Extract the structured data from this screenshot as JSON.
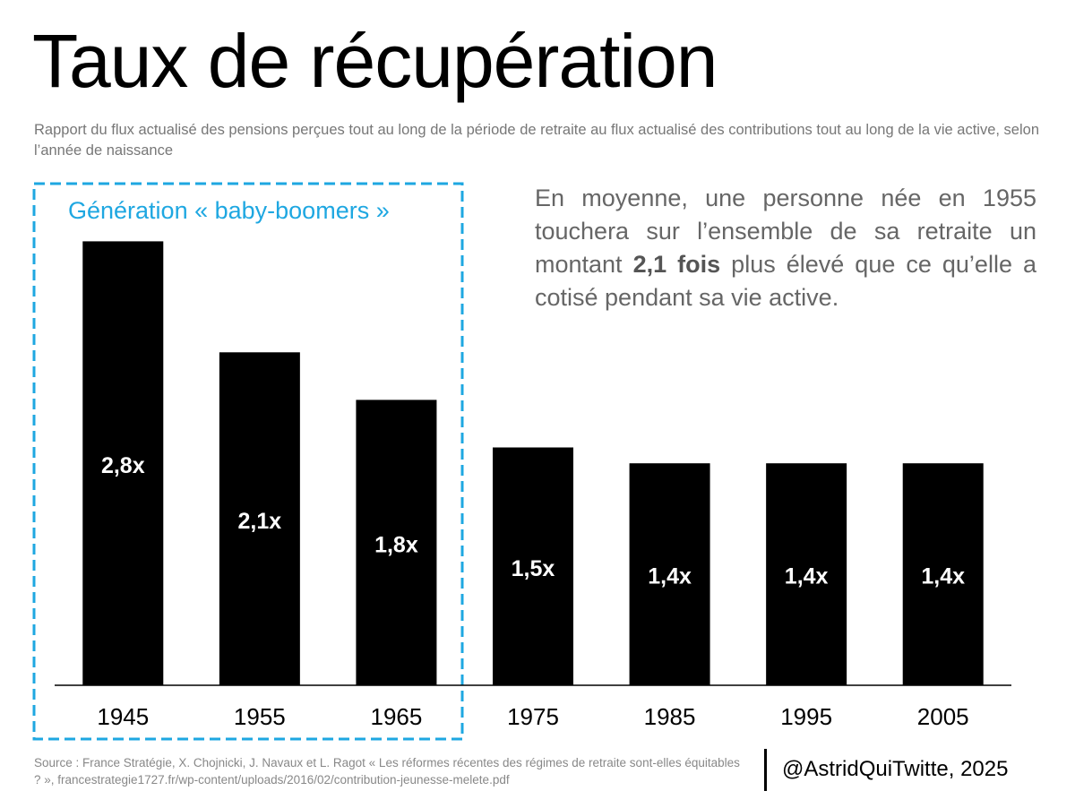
{
  "chart_data": {
    "type": "bar",
    "title": "Taux de récupération",
    "subtitle": "Rapport du flux actualisé des pensions perçues tout au long de la période de retraite au flux actualisé des contributions tout au long de la vie active, selon l’année de naissance",
    "highlight_label": "Génération « baby-boomers »",
    "annotation": {
      "before": "En moyenne, une personne née en 1955 touchera sur l’ensemble de sa retraite un montant ",
      "bold": "2,1 fois",
      "after": " plus élevé que ce qu’elle a cotisé pendant sa vie active."
    },
    "categories": [
      "1945",
      "1955",
      "1965",
      "1975",
      "1985",
      "1995",
      "2005"
    ],
    "values": [
      2.8,
      2.1,
      1.8,
      1.5,
      1.4,
      1.4,
      1.4
    ],
    "value_labels": [
      "2,8x",
      "2,1x",
      "1,8x",
      "1,5x",
      "1,4x",
      "1,4x",
      "1,4x"
    ],
    "color": "#000000",
    "highlight_color": "#1ea7e1",
    "ylim": [
      0,
      3
    ],
    "source": "Source : France Stratégie, X. Chojnicki, J. Navaux et L. Ragot « Les réformes récentes des régimes de retraite sont-elles équitables ? », francestrategie1727.fr/wp-content/uploads/2016/02/contribution-jeunesse-melete.pdf",
    "credit": "@AstridQuiTwitte, 2025"
  }
}
